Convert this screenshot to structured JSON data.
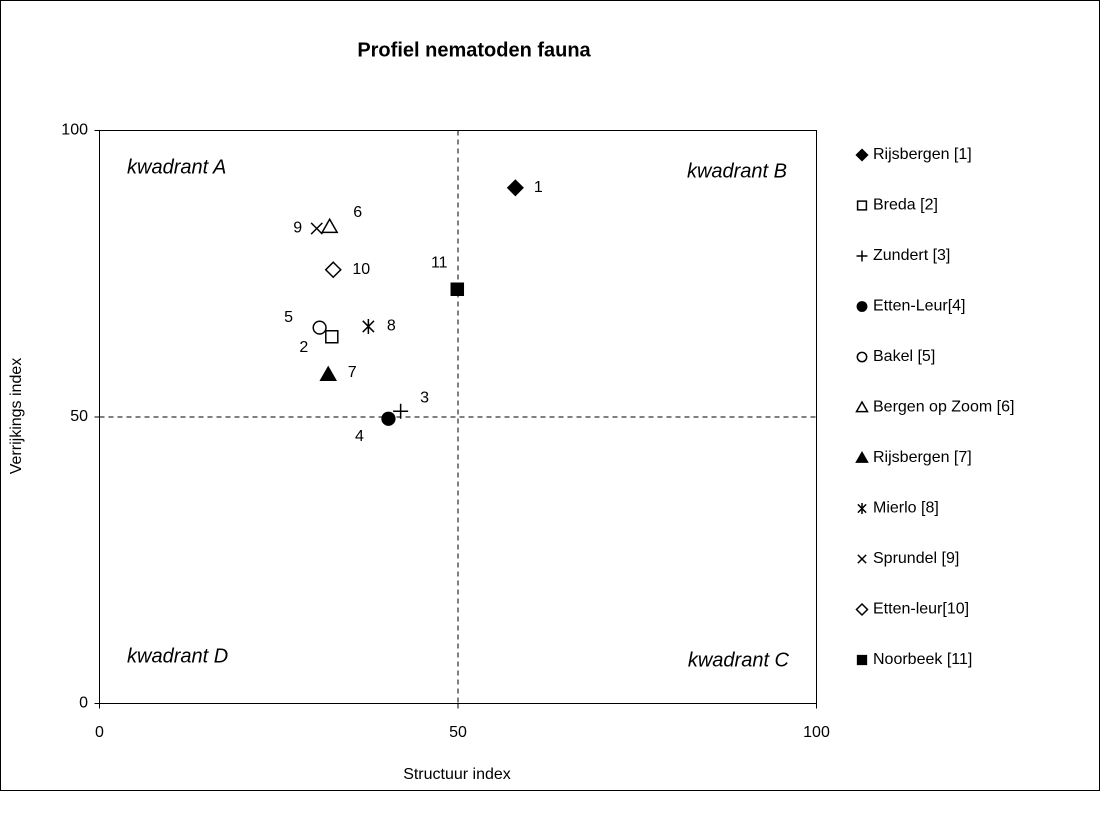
{
  "chart_data": {
    "type": "scatter",
    "title": "Profiel nematoden fauna",
    "x_label": "Structuur index",
    "y_label": "Verrijkings index",
    "xlim": [
      0,
      100
    ],
    "ylim": [
      0,
      100
    ],
    "xticks": [
      0,
      50,
      100
    ],
    "yticks": [
      0,
      50,
      100
    ],
    "reference_lines": {
      "x": 50,
      "y": 50
    },
    "annotations": [
      "kwadrant A",
      "kwadrant B",
      "kwadrant C",
      "kwadrant D"
    ],
    "legend": "right",
    "series": [
      {
        "name": "Rijsbergen [1]",
        "marker": "diamond-filled",
        "color": "#000000",
        "x": [
          58
        ],
        "values": [
          90
        ],
        "label": "1"
      },
      {
        "name": "Breda [2]",
        "marker": "square-open",
        "color": "#000000",
        "x": [
          32.4
        ],
        "values": [
          64
        ],
        "label": "2"
      },
      {
        "name": "Zundert [3]",
        "marker": "plus",
        "color": "#000000",
        "x": [
          42
        ],
        "values": [
          51
        ],
        "label": "3"
      },
      {
        "name": "Etten-Leur[4]",
        "marker": "circle-filled",
        "color": "#000000",
        "x": [
          40.3
        ],
        "values": [
          49.7
        ],
        "label": "4"
      },
      {
        "name": "Bakel [5]",
        "marker": "circle-open",
        "color": "#000000",
        "x": [
          30.7
        ],
        "values": [
          65.6
        ],
        "label": "5"
      },
      {
        "name": "Bergen op Zoom [6]",
        "marker": "triangle-open",
        "color": "#000000",
        "x": [
          32.1
        ],
        "values": [
          83.2
        ],
        "label": "6"
      },
      {
        "name": "Rijsbergen [7]",
        "marker": "triangle-filled",
        "color": "#000000",
        "x": [
          31.9
        ],
        "values": [
          57.4
        ],
        "label": "7"
      },
      {
        "name": "Mierlo [8]",
        "marker": "asterisk",
        "color": "#000000",
        "x": [
          37.5
        ],
        "values": [
          65.8
        ],
        "label": "8"
      },
      {
        "name": "Sprundel [9]",
        "marker": "cross",
        "color": "#000000",
        "x": [
          30.3
        ],
        "values": [
          82.9
        ],
        "label": "9"
      },
      {
        "name": "Etten-leur[10]",
        "marker": "diamond-open",
        "color": "#000000",
        "x": [
          32.6
        ],
        "values": [
          75.7
        ],
        "label": "10"
      },
      {
        "name": "Noorbeek [11]",
        "marker": "square-filled",
        "color": "#000000",
        "x": [
          49.9
        ],
        "values": [
          72.3
        ],
        "label": "11"
      }
    ]
  }
}
